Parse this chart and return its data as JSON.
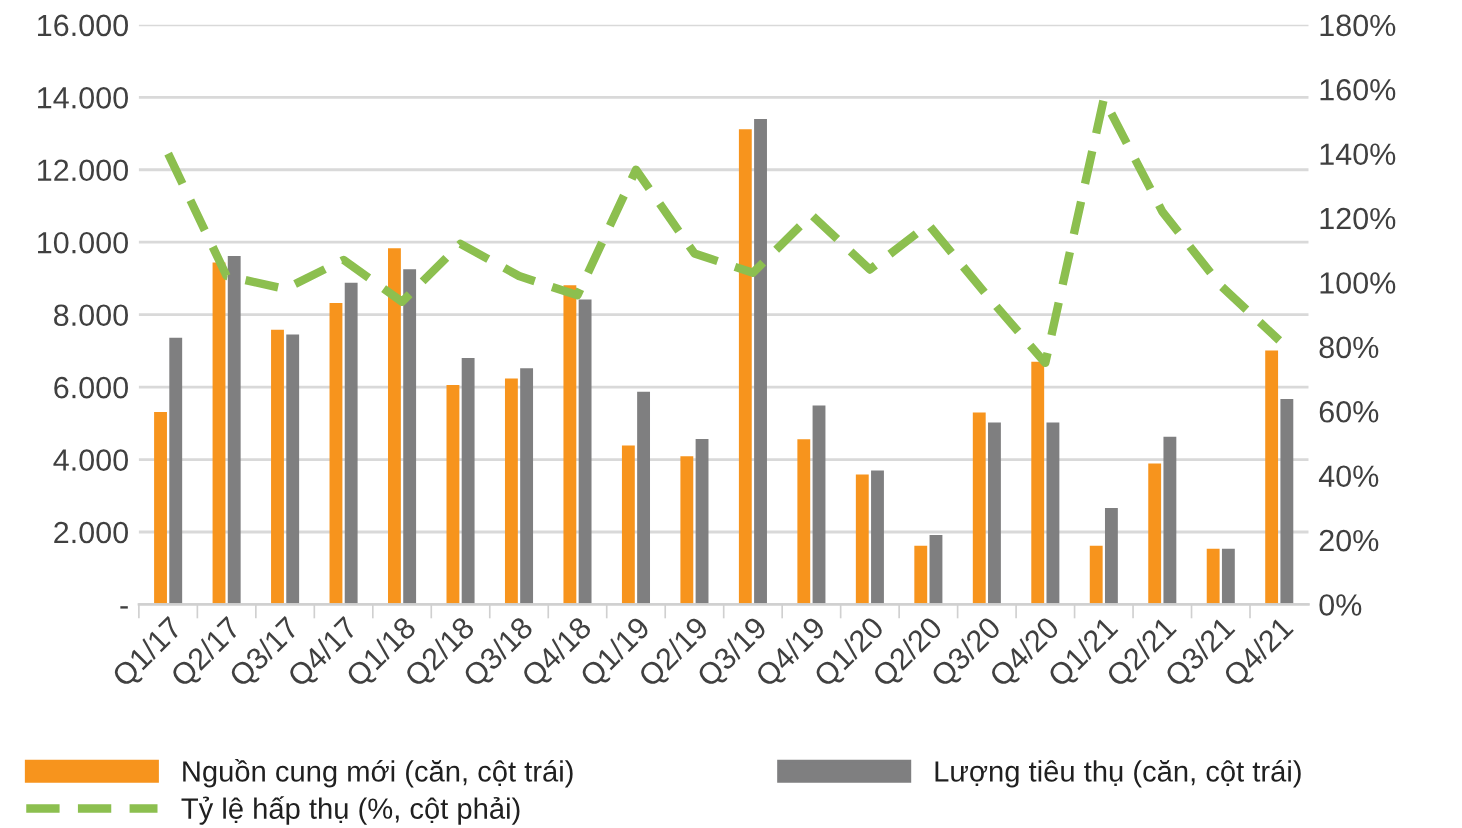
{
  "chart_data": {
    "type": "bar",
    "categories": [
      "Q1/17",
      "Q2/17",
      "Q3/17",
      "Q4/17",
      "Q1/18",
      "Q2/18",
      "Q3/18",
      "Q4/18",
      "Q1/19",
      "Q2/19",
      "Q3/19",
      "Q4/19",
      "Q1/20",
      "Q2/20",
      "Q3/20",
      "Q4/20",
      "Q1/21",
      "Q2/21",
      "Q3/21",
      "Q4/21"
    ],
    "series": [
      {
        "name": "Nguồn cung mới (căn, cột trái)",
        "color": "#f7941d",
        "values": [
          5310,
          9440,
          7580,
          8320,
          9830,
          6060,
          6240,
          8810,
          4390,
          4090,
          13120,
          4560,
          3590,
          1620,
          5300,
          6700,
          1620,
          3890,
          1540,
          7010
        ]
      },
      {
        "name": "Lượng tiêu thụ (căn, cột trái)",
        "color": "#7f7f80",
        "values": [
          7360,
          9620,
          7450,
          8880,
          9250,
          6800,
          6520,
          8420,
          5870,
          4570,
          13400,
          5490,
          3700,
          1920,
          5020,
          5020,
          2660,
          4630,
          1540,
          5670
        ]
      },
      {
        "name": "Tỷ lệ hấp thụ (%, cột phải)",
        "type": "line",
        "axis": "y2",
        "line_style": "dashed",
        "color": "#8cbf4f",
        "values": [
          140,
          102,
          98,
          107,
          94,
          112,
          102,
          96,
          135,
          109,
          103,
          121,
          104,
          118,
          96,
          75,
          157,
          122,
          99,
          82
        ]
      }
    ],
    "ylim": [
      0,
      16000
    ],
    "yticks": [
      {
        "value": 0,
        "label": "-"
      },
      {
        "value": 2000,
        "label": "2.000"
      },
      {
        "value": 4000,
        "label": "4.000"
      },
      {
        "value": 6000,
        "label": "6.000"
      },
      {
        "value": 8000,
        "label": "8.000"
      },
      {
        "value": 10000,
        "label": "10.000"
      },
      {
        "value": 12000,
        "label": "12.000"
      },
      {
        "value": 14000,
        "label": "14.000"
      },
      {
        "value": 16000,
        "label": "16.000"
      }
    ],
    "y2lim": [
      0,
      180
    ],
    "y2ticks": [
      {
        "value": 0,
        "label": "0%"
      },
      {
        "value": 20,
        "label": "20%"
      },
      {
        "value": 40,
        "label": "40%"
      },
      {
        "value": 60,
        "label": "60%"
      },
      {
        "value": 80,
        "label": "80%"
      },
      {
        "value": 100,
        "label": "100%"
      },
      {
        "value": 120,
        "label": "120%"
      },
      {
        "value": 140,
        "label": "140%"
      },
      {
        "value": 160,
        "label": "160%"
      },
      {
        "value": 180,
        "label": "180%"
      }
    ],
    "grid": "y",
    "legend": "bottom"
  }
}
